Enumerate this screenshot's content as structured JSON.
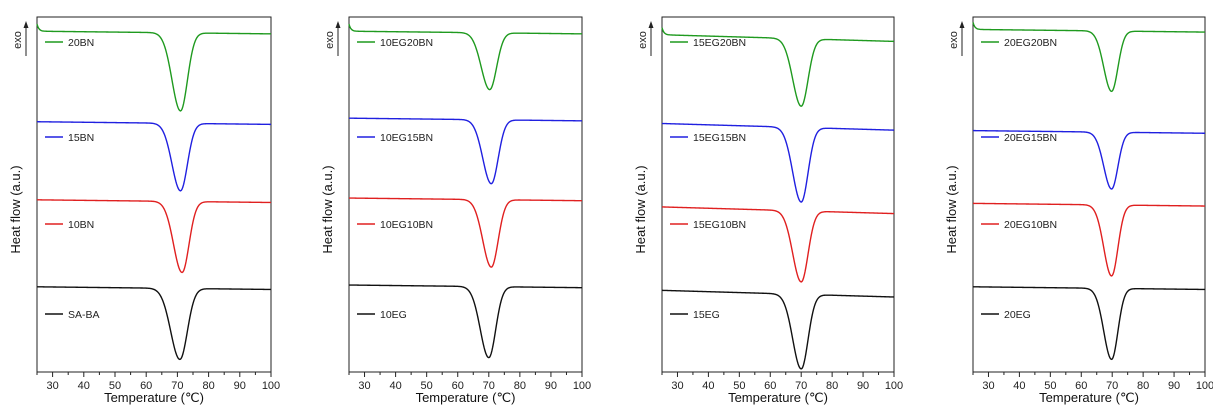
{
  "chart_data": [
    {
      "type": "line",
      "xlabel": "Temperature (℃)",
      "ylabel": "Heat flow (a.u.)",
      "exo_label": "exo",
      "xlim": [
        25,
        100
      ],
      "xticks": [
        "30",
        "40",
        "50",
        "60",
        "70",
        "80",
        "90",
        "100"
      ],
      "series": [
        {
          "name": "20BN",
          "color": "#1f9a1f",
          "baseline": 0.96,
          "depth": 0.22,
          "peak": 71.0,
          "width": 2.6,
          "start_rise": 0.02
        },
        {
          "name": "15BN",
          "color": "#2020e0",
          "baseline": 0.705,
          "depth": 0.19,
          "peak": 71.0,
          "width": 2.6,
          "start_rise": 0.0
        },
        {
          "name": "10BN",
          "color": "#e02020",
          "baseline": 0.485,
          "depth": 0.2,
          "peak": 71.5,
          "width": 2.6,
          "start_rise": 0.0
        },
        {
          "name": "SA-BA",
          "color": "#111111",
          "baseline": 0.24,
          "depth": 0.2,
          "peak": 70.8,
          "width": 2.8,
          "start_rise": 0.0
        }
      ]
    },
    {
      "type": "line",
      "xlabel": "Temperature (℃)",
      "ylabel": "Heat flow (a.u.)",
      "exo_label": "exo",
      "xlim": [
        25,
        100
      ],
      "xticks": [
        "30",
        "40",
        "50",
        "60",
        "70",
        "80",
        "90",
        "100"
      ],
      "series": [
        {
          "name": "10EG20BN",
          "color": "#1f9a1f",
          "baseline": 0.96,
          "depth": 0.16,
          "peak": 70.3,
          "width": 2.6,
          "start_rise": 0.02
        },
        {
          "name": "10EG15BN",
          "color": "#2020e0",
          "baseline": 0.715,
          "depth": 0.18,
          "peak": 70.8,
          "width": 2.6,
          "start_rise": 0.0
        },
        {
          "name": "10EG10BN",
          "color": "#e02020",
          "baseline": 0.49,
          "depth": 0.19,
          "peak": 70.8,
          "width": 2.6,
          "start_rise": 0.0
        },
        {
          "name": "10EG",
          "color": "#111111",
          "baseline": 0.245,
          "depth": 0.2,
          "peak": 70.0,
          "width": 2.6,
          "start_rise": 0.0
        }
      ]
    },
    {
      "type": "line",
      "xlabel": "Temperature (℃)",
      "ylabel": "Heat flow (a.u.)",
      "exo_label": "exo",
      "xlim": [
        25,
        100
      ],
      "xticks": [
        "30",
        "40",
        "50",
        "60",
        "70",
        "80",
        "90",
        "100"
      ],
      "series": [
        {
          "name": "15EG20BN",
          "color": "#1f9a1f",
          "baseline": 0.95,
          "depth": 0.19,
          "peak": 70.0,
          "width": 2.6,
          "start_rise": 0.02
        },
        {
          "name": "15EG15BN",
          "color": "#2020e0",
          "baseline": 0.7,
          "depth": 0.21,
          "peak": 70.0,
          "width": 2.6,
          "start_rise": 0.0
        },
        {
          "name": "15EG10BN",
          "color": "#e02020",
          "baseline": 0.465,
          "depth": 0.2,
          "peak": 70.0,
          "width": 2.6,
          "start_rise": 0.0
        },
        {
          "name": "15EG",
          "color": "#111111",
          "baseline": 0.23,
          "depth": 0.21,
          "peak": 70.0,
          "width": 2.6,
          "start_rise": 0.0
        }
      ]
    },
    {
      "type": "line",
      "xlabel": "Temperature (℃)",
      "ylabel": "Heat flow (a.u.)",
      "exo_label": "exo",
      "xlim": [
        25,
        100
      ],
      "xticks": [
        "30",
        "40",
        "50",
        "60",
        "70",
        "80",
        "90",
        "100"
      ],
      "series": [
        {
          "name": "20EG20BN",
          "color": "#1f9a1f",
          "baseline": 0.965,
          "depth": 0.17,
          "peak": 69.8,
          "width": 2.4,
          "start_rise": 0.02
        },
        {
          "name": "20EG15BN",
          "color": "#2020e0",
          "baseline": 0.68,
          "depth": 0.16,
          "peak": 69.8,
          "width": 2.4,
          "start_rise": 0.0
        },
        {
          "name": "20EG10BN",
          "color": "#e02020",
          "baseline": 0.475,
          "depth": 0.2,
          "peak": 69.8,
          "width": 2.4,
          "start_rise": 0.0
        },
        {
          "name": "20EG",
          "color": "#111111",
          "baseline": 0.24,
          "depth": 0.2,
          "peak": 69.8,
          "width": 2.4,
          "start_rise": 0.0
        }
      ]
    }
  ]
}
